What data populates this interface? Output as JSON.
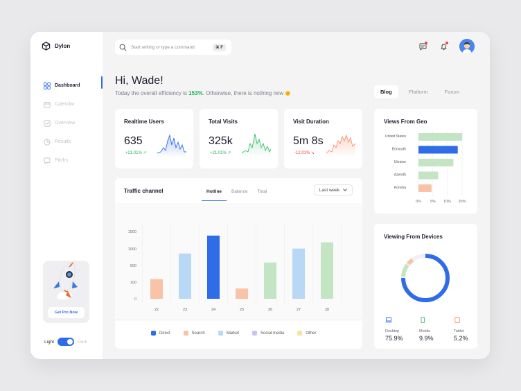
{
  "app": {
    "name": "Dylon"
  },
  "sidebar": {
    "items": [
      {
        "label": "Dashboard",
        "icon": "grid-icon",
        "active": true
      },
      {
        "label": "Calendar",
        "icon": "calendar-icon",
        "active": false
      },
      {
        "label": "Overview",
        "icon": "chart-icon",
        "active": false
      },
      {
        "label": "Results",
        "icon": "pie-icon",
        "active": false
      },
      {
        "label": "Pitchs",
        "icon": "chat-icon",
        "active": false
      }
    ],
    "promo_button": "Get Pro Now",
    "theme_light": "Light",
    "theme_dark": "Dark"
  },
  "search": {
    "placeholder": "Start writing or type a command",
    "shortcut": "⌘ F"
  },
  "greeting": {
    "title": "Hi, Wade!",
    "line_before": "Today the overall efficiency is ",
    "percent": "153%",
    "line_after": ". Otherwise, there is nothing new",
    "emoji": "🌞"
  },
  "top_tabs": [
    "Blog",
    "Platform",
    "Forum"
  ],
  "stats": [
    {
      "title": "Realtime Users",
      "value": "635",
      "change": "+21.01%",
      "trend": "up",
      "color": "#2f6de8"
    },
    {
      "title": "Total Visits",
      "value": "325k",
      "change": "+21.01%",
      "trend": "up",
      "color": "#3cc06c"
    },
    {
      "title": "Visit Duration",
      "value": "5m 8s",
      "change": "-12.01%",
      "trend": "down",
      "color": "#f5926c"
    }
  ],
  "traffic": {
    "title": "Traffic channel",
    "tabs": [
      "Hotline",
      "Balance",
      "Total"
    ],
    "period": "Last week",
    "legend": [
      {
        "label": "Direct",
        "color": "#2f6de8"
      },
      {
        "label": "Search",
        "color": "#f9c3a8"
      },
      {
        "label": "Market",
        "color": "#b8d8f6"
      },
      {
        "label": "Social media",
        "color": "#c9c4f2"
      },
      {
        "label": "Other",
        "color": "#f7e39a"
      }
    ]
  },
  "chart_data": [
    {
      "type": "bar",
      "title": "Traffic channel",
      "categories": [
        "22",
        "23",
        "24",
        "25",
        "26",
        "27",
        "28"
      ],
      "values": [
        440,
        1010,
        1410,
        230,
        810,
        1120,
        1260
      ],
      "colors": [
        "#f9c3a8",
        "#b8d8f6",
        "#2f6de8",
        "#f9c3a8",
        "#c4e5c4",
        "#b8d8f6",
        "#c4e5c4"
      ],
      "yticks": [
        "0",
        "100",
        "500",
        "1000",
        "1500"
      ],
      "ylim": [
        0,
        1500
      ]
    },
    {
      "type": "bar",
      "title": "Views From Geo",
      "orientation": "horizontal",
      "categories": [
        "United States",
        "Ennorath",
        "Ukraine",
        "Azeroth",
        "Konoha"
      ],
      "values": [
        20,
        18,
        16,
        9,
        6
      ],
      "colors": [
        "#c4e5c4",
        "#2f6de8",
        "#c4e5c4",
        "#c4e5c4",
        "#f9c3a8"
      ],
      "xticks": [
        "0%",
        "5%",
        "10%",
        "20%"
      ],
      "xlim": [
        0,
        20
      ]
    },
    {
      "type": "pie",
      "title": "Viewing From Devices",
      "categories": [
        "Desktop",
        "Mobile",
        "Tablet"
      ],
      "values": [
        75.9,
        9.9,
        5.2
      ],
      "labels": [
        "75.9%",
        "9.9%",
        "5.2%"
      ],
      "colors": [
        "#2f6de8",
        "#c4e5c4",
        "#f9c3a8"
      ]
    }
  ]
}
